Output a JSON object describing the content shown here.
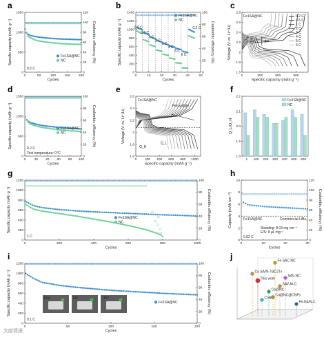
{
  "colors": {
    "blue": "#3f8fc9",
    "green": "#6fcf9a",
    "lightgreen": "#a8e0bf",
    "lightblue": "#b7d6ee"
  },
  "watermark": "文献情报",
  "chart_data": [
    {
      "id": "a",
      "type": "line",
      "panel_label": "a",
      "ylabel": "Specific capacity (mAh g⁻¹)",
      "y2label": "Coulombic efficiency (%)",
      "xlabel": "Cycles",
      "xlim": [
        0,
        200
      ],
      "ylim": [
        0,
        1500
      ],
      "y2lim": [
        0,
        120
      ],
      "annotation": "0.2 C",
      "series": [
        {
          "name": "Fe1SA@NC",
          "color": "#3f8fc9",
          "points": [
            [
              1,
              1080
            ],
            [
              5,
              1000
            ],
            [
              10,
              955
            ],
            [
              20,
              920
            ],
            [
              40,
              890
            ],
            [
              60,
              870
            ],
            [
              80,
              855
            ],
            [
              100,
              845
            ],
            [
              120,
              835
            ],
            [
              140,
              830
            ],
            [
              160,
              825
            ],
            [
              180,
              820
            ],
            [
              200,
              815
            ]
          ]
        },
        {
          "name": "NC",
          "color": "#6fcf9a",
          "points": [
            [
              1,
              1230
            ],
            [
              3,
              1020
            ],
            [
              10,
              910
            ],
            [
              20,
              860
            ],
            [
              40,
              800
            ],
            [
              60,
              770
            ],
            [
              80,
              750
            ],
            [
              100,
              735
            ],
            [
              120,
              722
            ],
            [
              140,
              712
            ],
            [
              160,
              705
            ],
            [
              180,
              700
            ],
            [
              200,
              697
            ]
          ]
        }
      ],
      "ce": [
        {
          "color": "#3f8fc9",
          "value": 99
        },
        {
          "color": "#6fcf9a",
          "value": 98
        }
      ]
    },
    {
      "id": "b",
      "type": "scatter",
      "panel_label": "b",
      "ylabel": "Specific capacity (mAh g⁻¹)",
      "y2label": "Coulombic efficiency (%)",
      "xlabel": "Cycles",
      "xlim": [
        0,
        50
      ],
      "ylim": [
        0,
        1400
      ],
      "y2lim": [
        0,
        100
      ],
      "rate_labels": [
        {
          "x": 2,
          "y": 1020,
          "t": "0.2 C"
        },
        {
          "x": 7,
          "y": 900,
          "t": "0.5 C"
        },
        {
          "x": 12,
          "y": 800,
          "t": "1 C"
        },
        {
          "x": 17,
          "y": 720,
          "t": "2 C"
        },
        {
          "x": 22,
          "y": 640,
          "t": "3 C"
        },
        {
          "x": 27,
          "y": 560,
          "t": "4 C"
        },
        {
          "x": 32,
          "y": 470,
          "t": "5 C"
        },
        {
          "x": 37,
          "y": 390,
          "t": "6 C"
        },
        {
          "x": 47,
          "y": 1010,
          "t": "0.2 C"
        }
      ],
      "series": [
        {
          "name": "Fe1SA@NC",
          "color": "#3f8fc9",
          "steps": [
            1050,
            930,
            830,
            750,
            680,
            620,
            560,
            490,
            1000
          ]
        },
        {
          "name": "NC",
          "color": "#6fcf9a",
          "steps": [
            960,
            760,
            640,
            520,
            420,
            330,
            220,
            100,
            850
          ]
        }
      ]
    },
    {
      "id": "c",
      "type": "line",
      "panel_label": "c",
      "title": "Fe1SA@NC",
      "ylabel": "Voltage (V vs. Li⁺/Li)",
      "xlabel": "Specific capacity (mAh g⁻¹)",
      "xlim": [
        0,
        1100
      ],
      "ylim": [
        1.6,
        2.8
      ],
      "legend": [
        "0.2 C",
        "0.5 C",
        "1 C",
        "2 C",
        "3 C",
        "4 C",
        "5 C",
        "6 C"
      ],
      "caps": [
        1050,
        930,
        830,
        750,
        680,
        620,
        560,
        490
      ],
      "annotation": "ΔV"
    },
    {
      "id": "d",
      "type": "line",
      "panel_label": "d",
      "ylabel": "Specific capacity (mAh g⁻¹)",
      "y2label": "Coulombic efficiency (%)",
      "xlabel": "Cycles",
      "xlim": [
        0,
        100
      ],
      "ylim": [
        0,
        1500
      ],
      "y2lim": [
        0,
        100
      ],
      "annotation": "0.2 C",
      "annotation2": "Test temperature: 0°C",
      "series": [
        {
          "name": "Fe1SA@NC",
          "color": "#3f8fc9",
          "points": [
            [
              1,
              960
            ],
            [
              5,
              880
            ],
            [
              10,
              840
            ],
            [
              20,
              800
            ],
            [
              30,
              770
            ],
            [
              40,
              750
            ],
            [
              50,
              735
            ],
            [
              60,
              720
            ],
            [
              70,
              710
            ],
            [
              80,
              700
            ],
            [
              90,
              690
            ],
            [
              100,
              680
            ]
          ]
        },
        {
          "name": "NC",
          "color": "#6fcf9a",
          "points": [
            [
              1,
              960
            ],
            [
              5,
              860
            ],
            [
              10,
              800
            ],
            [
              20,
              755
            ],
            [
              30,
              720
            ],
            [
              40,
              700
            ],
            [
              50,
              680
            ],
            [
              60,
              662
            ],
            [
              70,
              648
            ],
            [
              80,
              636
            ],
            [
              90,
              626
            ],
            [
              100,
              615
            ]
          ]
        }
      ],
      "ce": [
        {
          "color": "#3f8fc9",
          "value": 98
        },
        {
          "color": "#6fcf9a",
          "value": 97
        }
      ]
    },
    {
      "id": "e",
      "type": "line",
      "panel_label": "e",
      "title": "Fe1SA@NC",
      "ylabel": "Voltage (V vs. Li⁺/Li)",
      "xlabel": "Specific capacity (mAh g⁻¹)",
      "xlim": [
        0,
        1100
      ],
      "ylim": [
        1.6,
        2.6
      ],
      "annotations": [
        "Q_H",
        "Q_L",
        "Polysulfide"
      ]
    },
    {
      "id": "f",
      "type": "bar",
      "panel_label": "f",
      "ylabel": "Q_L/Q_H",
      "categories": [
        "1",
        "100",
        "200",
        "300",
        "400",
        "500",
        "600"
      ],
      "ylim": [
        1.8,
        2.2
      ],
      "series": [
        {
          "name": "Fe1SA@NC",
          "color": "#b7d6ee",
          "values": [
            2.09,
            2.11,
            2.08,
            2.02,
            2.04,
            2.11,
            2.08
          ]
        },
        {
          "name": "NC",
          "color": "#a8e0bf",
          "values": [
            1.94,
            2.06,
            2.06,
            2.02,
            2.06,
            2.06,
            1.94
          ]
        }
      ]
    },
    {
      "id": "g",
      "type": "line",
      "panel_label": "g",
      "ylabel": "Specific capacity (mAh g⁻¹)",
      "y2label": "Coulombic efficiency (%)",
      "xlabel": "Cycles",
      "xlim": [
        0,
        1000
      ],
      "ylim": [
        0,
        1200
      ],
      "y2lim": [
        0,
        100
      ],
      "annotation": "1 C",
      "series": [
        {
          "name": "Fe1SA@NC",
          "color": "#3f8fc9",
          "points": [
            [
              1,
              780
            ],
            [
              50,
              690
            ],
            [
              100,
              650
            ],
            [
              200,
              610
            ],
            [
              300,
              585
            ],
            [
              400,
              565
            ],
            [
              500,
              550
            ],
            [
              600,
              535
            ],
            [
              700,
              520
            ],
            [
              800,
              505
            ],
            [
              900,
              495
            ],
            [
              1000,
              480
            ]
          ]
        },
        {
          "name": "NC",
          "color": "#6fcf9a",
          "points": [
            [
              1,
              720
            ],
            [
              50,
              620
            ],
            [
              100,
              580
            ],
            [
              200,
              530
            ],
            [
              300,
              480
            ],
            [
              400,
              420
            ],
            [
              500,
              360
            ],
            [
              600,
              290
            ],
            [
              700,
              210
            ],
            [
              780,
              120
            ],
            [
              800,
              70
            ]
          ]
        }
      ],
      "ce": [
        {
          "color": "#3f8fc9",
          "value": 99
        },
        {
          "color": "#6fcf9a",
          "value": 95
        }
      ]
    },
    {
      "id": "h",
      "type": "line",
      "panel_label": "h",
      "ylabel": "Capacity (mAh cm⁻²)",
      "y2label": "Coulombic efficiency (%)",
      "xlabel": "Cycles",
      "xlim": [
        0,
        30
      ],
      "ylim": [
        0,
        10
      ],
      "y2lim": [
        0,
        120
      ],
      "annotation": "0.02 C",
      "series": [
        {
          "name": "Fe1SA@NC",
          "color": "#3f8fc9",
          "points": [
            [
              1,
              6.3
            ],
            [
              3,
              5.9
            ],
            [
              5,
              5.8
            ],
            [
              8,
              5.7
            ],
            [
              10,
              5.6
            ],
            [
              15,
              5.5
            ],
            [
              20,
              5.4
            ],
            [
              25,
              5.3
            ],
            [
              30,
              5.2
            ]
          ]
        }
      ],
      "ce": [
        {
          "color": "#3f8fc9",
          "value": 92
        }
      ],
      "reference": {
        "label": "Commercial LIBs",
        "value": 4
      },
      "loading_text": [
        "Sloading: 8.03 mg cm⁻²",
        "E/S: 8 μL mg⁻¹"
      ]
    },
    {
      "id": "i",
      "type": "line",
      "panel_label": "i",
      "ylabel": "Specific capacity (mAh g⁻¹)",
      "y2label": "Coulombic efficiency (%)",
      "xlabel": "Cycles",
      "xlim": [
        0,
        200
      ],
      "ylim": [
        0,
        1200
      ],
      "y2lim": [
        0,
        100
      ],
      "annotation": "0.1 C",
      "series": [
        {
          "name": "Fe1SA@NC",
          "color": "#3f8fc9",
          "points": [
            [
              1,
              1000
            ],
            [
              10,
              900
            ],
            [
              20,
              820
            ],
            [
              40,
              760
            ],
            [
              60,
              720
            ],
            [
              80,
              690
            ],
            [
              100,
              660
            ],
            [
              120,
              640
            ],
            [
              140,
              620
            ],
            [
              160,
              600
            ],
            [
              180,
              585
            ],
            [
              200,
              570
            ]
          ]
        }
      ],
      "ce": [
        {
          "color": "#3f8fc9",
          "value": 99
        }
      ],
      "photo_labels": [
        "Flat",
        "90°",
        "180°"
      ]
    },
    {
      "id": "j",
      "type": "scatter",
      "panel_label": "j",
      "title": "3D comparison",
      "points": [
        {
          "label": "Fe SAC NC",
          "color": "#c9a100"
        },
        {
          "label": "Co SA/N-Ti3C2Tx",
          "color": "#e28a2b"
        },
        {
          "label": "SAV-NC",
          "color": "#b05fd0"
        },
        {
          "label": "This work",
          "color": "#d9302a"
        },
        {
          "label": "SAV-Ni-C",
          "color": "#d08a3a"
        },
        {
          "label": "Co@NC",
          "color": "#26a06a"
        },
        {
          "label": "Co@NC@CNFs",
          "color": "#d9a020"
        },
        {
          "label": "CoNC",
          "color": "#3fb6c8"
        },
        {
          "label": "Fe-N4/N-C",
          "color": "#2a5fc8"
        }
      ]
    }
  ]
}
